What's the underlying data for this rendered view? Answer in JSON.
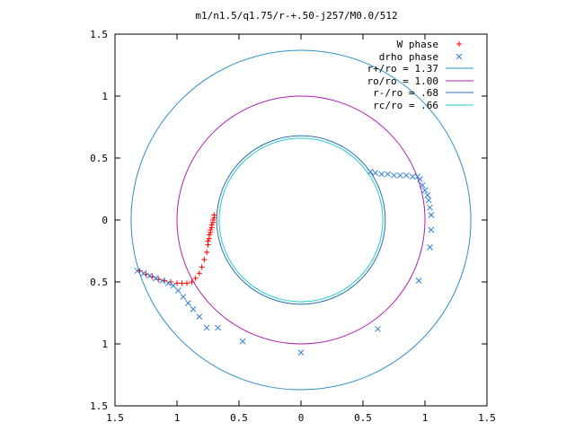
{
  "chart_data": {
    "type": "scatter",
    "title": "m1/n1.5/q1.75/r-+.50-j257/M0.0/512",
    "xlabel": "",
    "ylabel": "",
    "xlim": [
      -1.5,
      1.5
    ],
    "ylim": [
      -1.5,
      1.5
    ],
    "grid": false,
    "legend_position": "top-right",
    "x_ticks": [
      -1.5,
      -1,
      -0.5,
      0,
      0.5,
      1,
      1.5
    ],
    "x_tick_labels": [
      "1.5",
      "1",
      "0.5",
      "0",
      "0.5",
      "1",
      "1.5"
    ],
    "y_ticks": [
      1.5,
      1,
      0.5,
      0,
      -0.5,
      -1,
      -1.5
    ],
    "y_tick_labels": [
      "1.5",
      "1",
      "0.5",
      "0",
      "0.5",
      "1",
      "1.5"
    ],
    "circles": [
      {
        "name": "r+/ro = 1.37",
        "radius": 1.37,
        "color": "#2e8fc7"
      },
      {
        "name": "ro/ro = 1.00",
        "radius": 1.0,
        "color": "#b020b0"
      },
      {
        "name": "r-/ro = .68",
        "radius": 0.68,
        "color": "#2f6fae"
      },
      {
        "name": "rc/ro = .66",
        "radius": 0.66,
        "color": "#22cccc"
      }
    ],
    "series": [
      {
        "name": "W phase",
        "marker": "+",
        "color": "#ff0000",
        "x": [
          -0.7,
          -0.71,
          -0.72,
          -0.73,
          -0.74,
          -0.75,
          -0.76,
          -0.78,
          -0.8,
          -0.82,
          -0.85,
          -0.88,
          -0.92,
          -0.96,
          -1.0,
          -1.05,
          -1.1,
          -1.15,
          -1.2,
          -1.25,
          -1.3,
          -0.7,
          -0.71,
          -0.72,
          -0.73,
          -0.74,
          -0.75
        ],
        "y": [
          0.02,
          -0.02,
          -0.06,
          -0.1,
          -0.15,
          -0.2,
          -0.26,
          -0.32,
          -0.38,
          -0.43,
          -0.47,
          -0.5,
          -0.51,
          -0.51,
          -0.51,
          -0.5,
          -0.49,
          -0.48,
          -0.46,
          -0.44,
          -0.41,
          0.04,
          0.0,
          -0.04,
          -0.08,
          -0.12,
          -0.17
        ]
      },
      {
        "name": "drho phase",
        "marker": "x",
        "color": "#2a7fd4",
        "x": [
          -1.32,
          -1.27,
          -1.22,
          -1.17,
          -1.12,
          -1.07,
          -1.03,
          -0.99,
          -0.95,
          -0.91,
          -0.87,
          -0.82,
          -0.76,
          -0.67,
          -0.47,
          0.0,
          0.62,
          0.95,
          1.04,
          1.05,
          1.05,
          1.04,
          1.03,
          1.02,
          1.0,
          0.98,
          0.96,
          0.94,
          0.9,
          0.85,
          0.8,
          0.75,
          0.7,
          0.65,
          0.6,
          0.56
        ],
        "y": [
          -0.41,
          -0.43,
          -0.45,
          -0.47,
          -0.49,
          -0.51,
          -0.53,
          -0.57,
          -0.62,
          -0.67,
          -0.72,
          -0.78,
          -0.87,
          -0.87,
          -0.98,
          -1.07,
          -0.88,
          -0.49,
          -0.22,
          -0.08,
          0.04,
          0.1,
          0.16,
          0.2,
          0.24,
          0.28,
          0.33,
          0.35,
          0.35,
          0.36,
          0.36,
          0.36,
          0.37,
          0.37,
          0.38,
          0.39
        ]
      }
    ]
  }
}
